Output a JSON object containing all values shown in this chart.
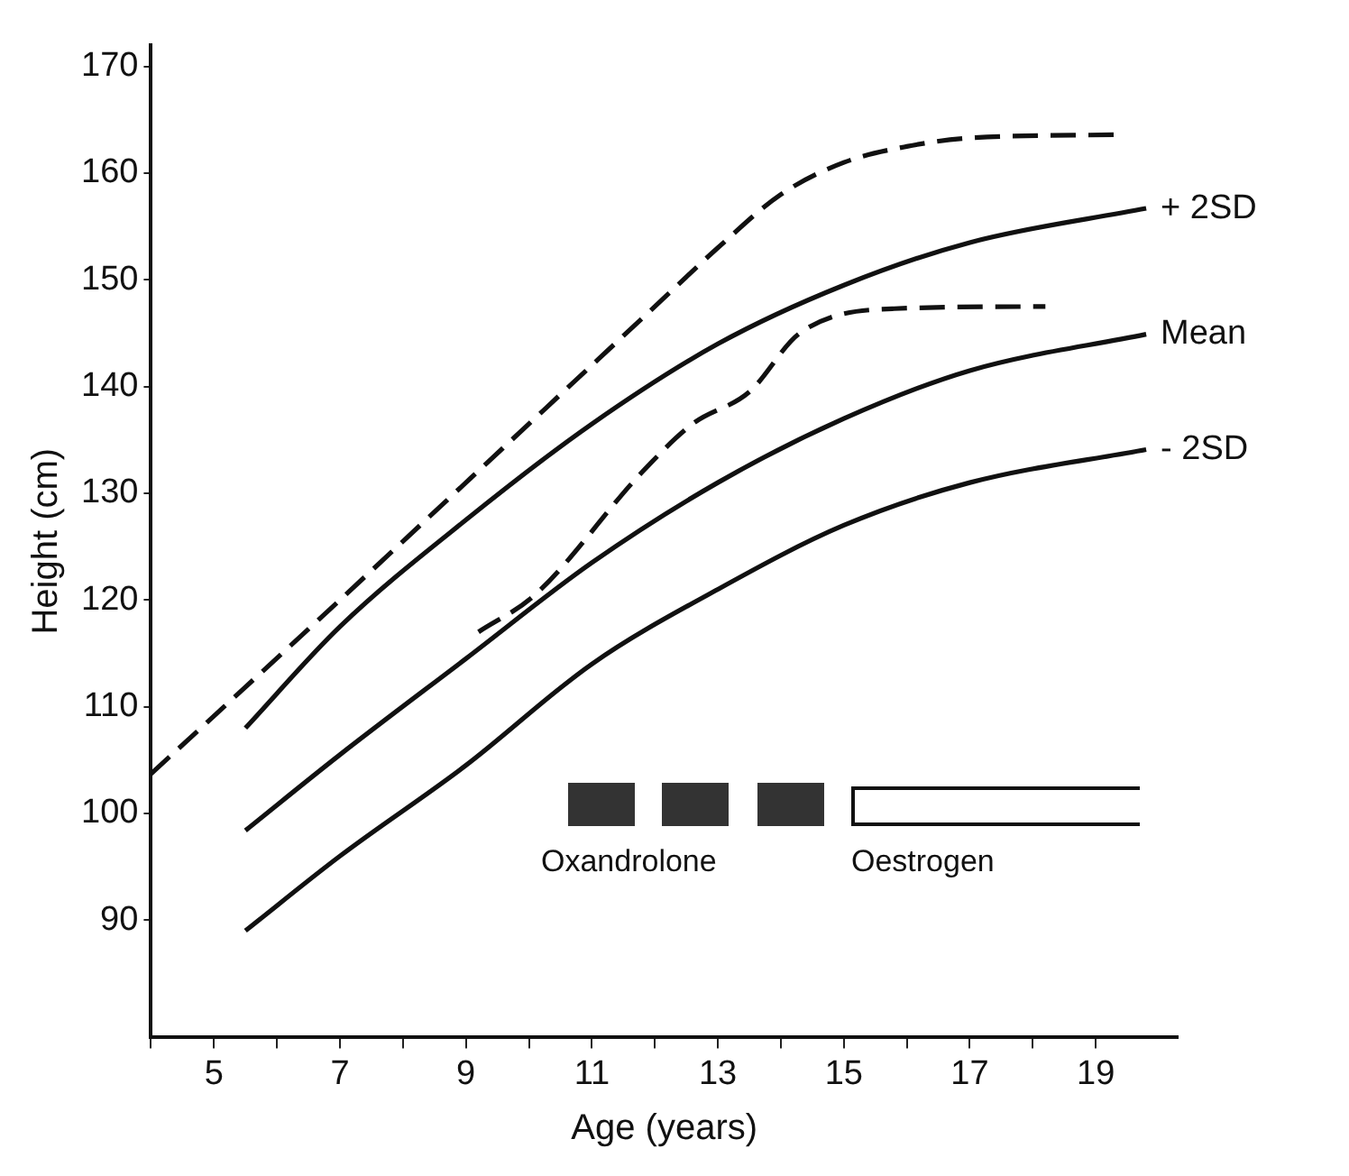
{
  "chart_data": {
    "type": "line",
    "xlabel": "Age (years)",
    "ylabel": "Height (cm)",
    "xlim": [
      4,
      20.3
    ],
    "ylim": [
      79,
      172
    ],
    "xticks": [
      {
        "value": 4,
        "label": null
      },
      5,
      {
        "value": 6,
        "label": null
      },
      7,
      {
        "value": 8,
        "label": null
      },
      9,
      {
        "value": 10,
        "label": null
      },
      11,
      {
        "value": 12,
        "label": null
      },
      13,
      {
        "value": 14,
        "label": null
      },
      15,
      {
        "value": 16,
        "label": null
      },
      17,
      {
        "value": 18,
        "label": null
      },
      19
    ],
    "yticks": [
      90,
      100,
      110,
      120,
      130,
      140,
      150,
      160,
      170
    ],
    "grid": false,
    "legend": false,
    "marker": "none",
    "series": [
      {
        "color": "#111111",
        "line_style": "dashed",
        "x": [
          4,
          7,
          9,
          11,
          12,
          13,
          14,
          15,
          16,
          17,
          19.3
        ],
        "values": [
          103.7,
          120,
          131,
          142,
          147.5,
          153,
          158,
          161,
          162.5,
          163.3,
          163.6
        ]
      },
      {
        "name": "+ 2SD",
        "color": "#111111",
        "line_style": "solid",
        "x": [
          5.5,
          7,
          9,
          11,
          13,
          15,
          17,
          19.8
        ],
        "values": [
          108,
          117.5,
          127.5,
          136.5,
          144,
          149.5,
          153.5,
          156.7
        ]
      },
      {
        "name": "Mean",
        "color": "#111111",
        "line_style": "solid",
        "x": [
          5.5,
          7,
          9,
          11,
          13,
          15,
          17,
          19.8
        ],
        "values": [
          98.4,
          105.5,
          114.5,
          123.5,
          131,
          137,
          141.5,
          144.9
        ]
      },
      {
        "name": "- 2SD",
        "color": "#111111",
        "line_style": "solid",
        "x": [
          5.5,
          7,
          9,
          11,
          13,
          15,
          17,
          19.8
        ],
        "values": [
          89,
          96,
          104.5,
          114,
          121,
          127,
          131,
          134.1
        ]
      },
      {
        "color": "#111111",
        "line_style": "dashed",
        "x": [
          9.2,
          10.1,
          11.8,
          12.6,
          13.5,
          14.3,
          15.8,
          18.2
        ],
        "values": [
          117,
          120.5,
          132,
          136.5,
          139.5,
          145,
          147.3,
          147.5
        ]
      }
    ],
    "annotations": [
      "Oxandrolone",
      "Oestrogen"
    ]
  }
}
